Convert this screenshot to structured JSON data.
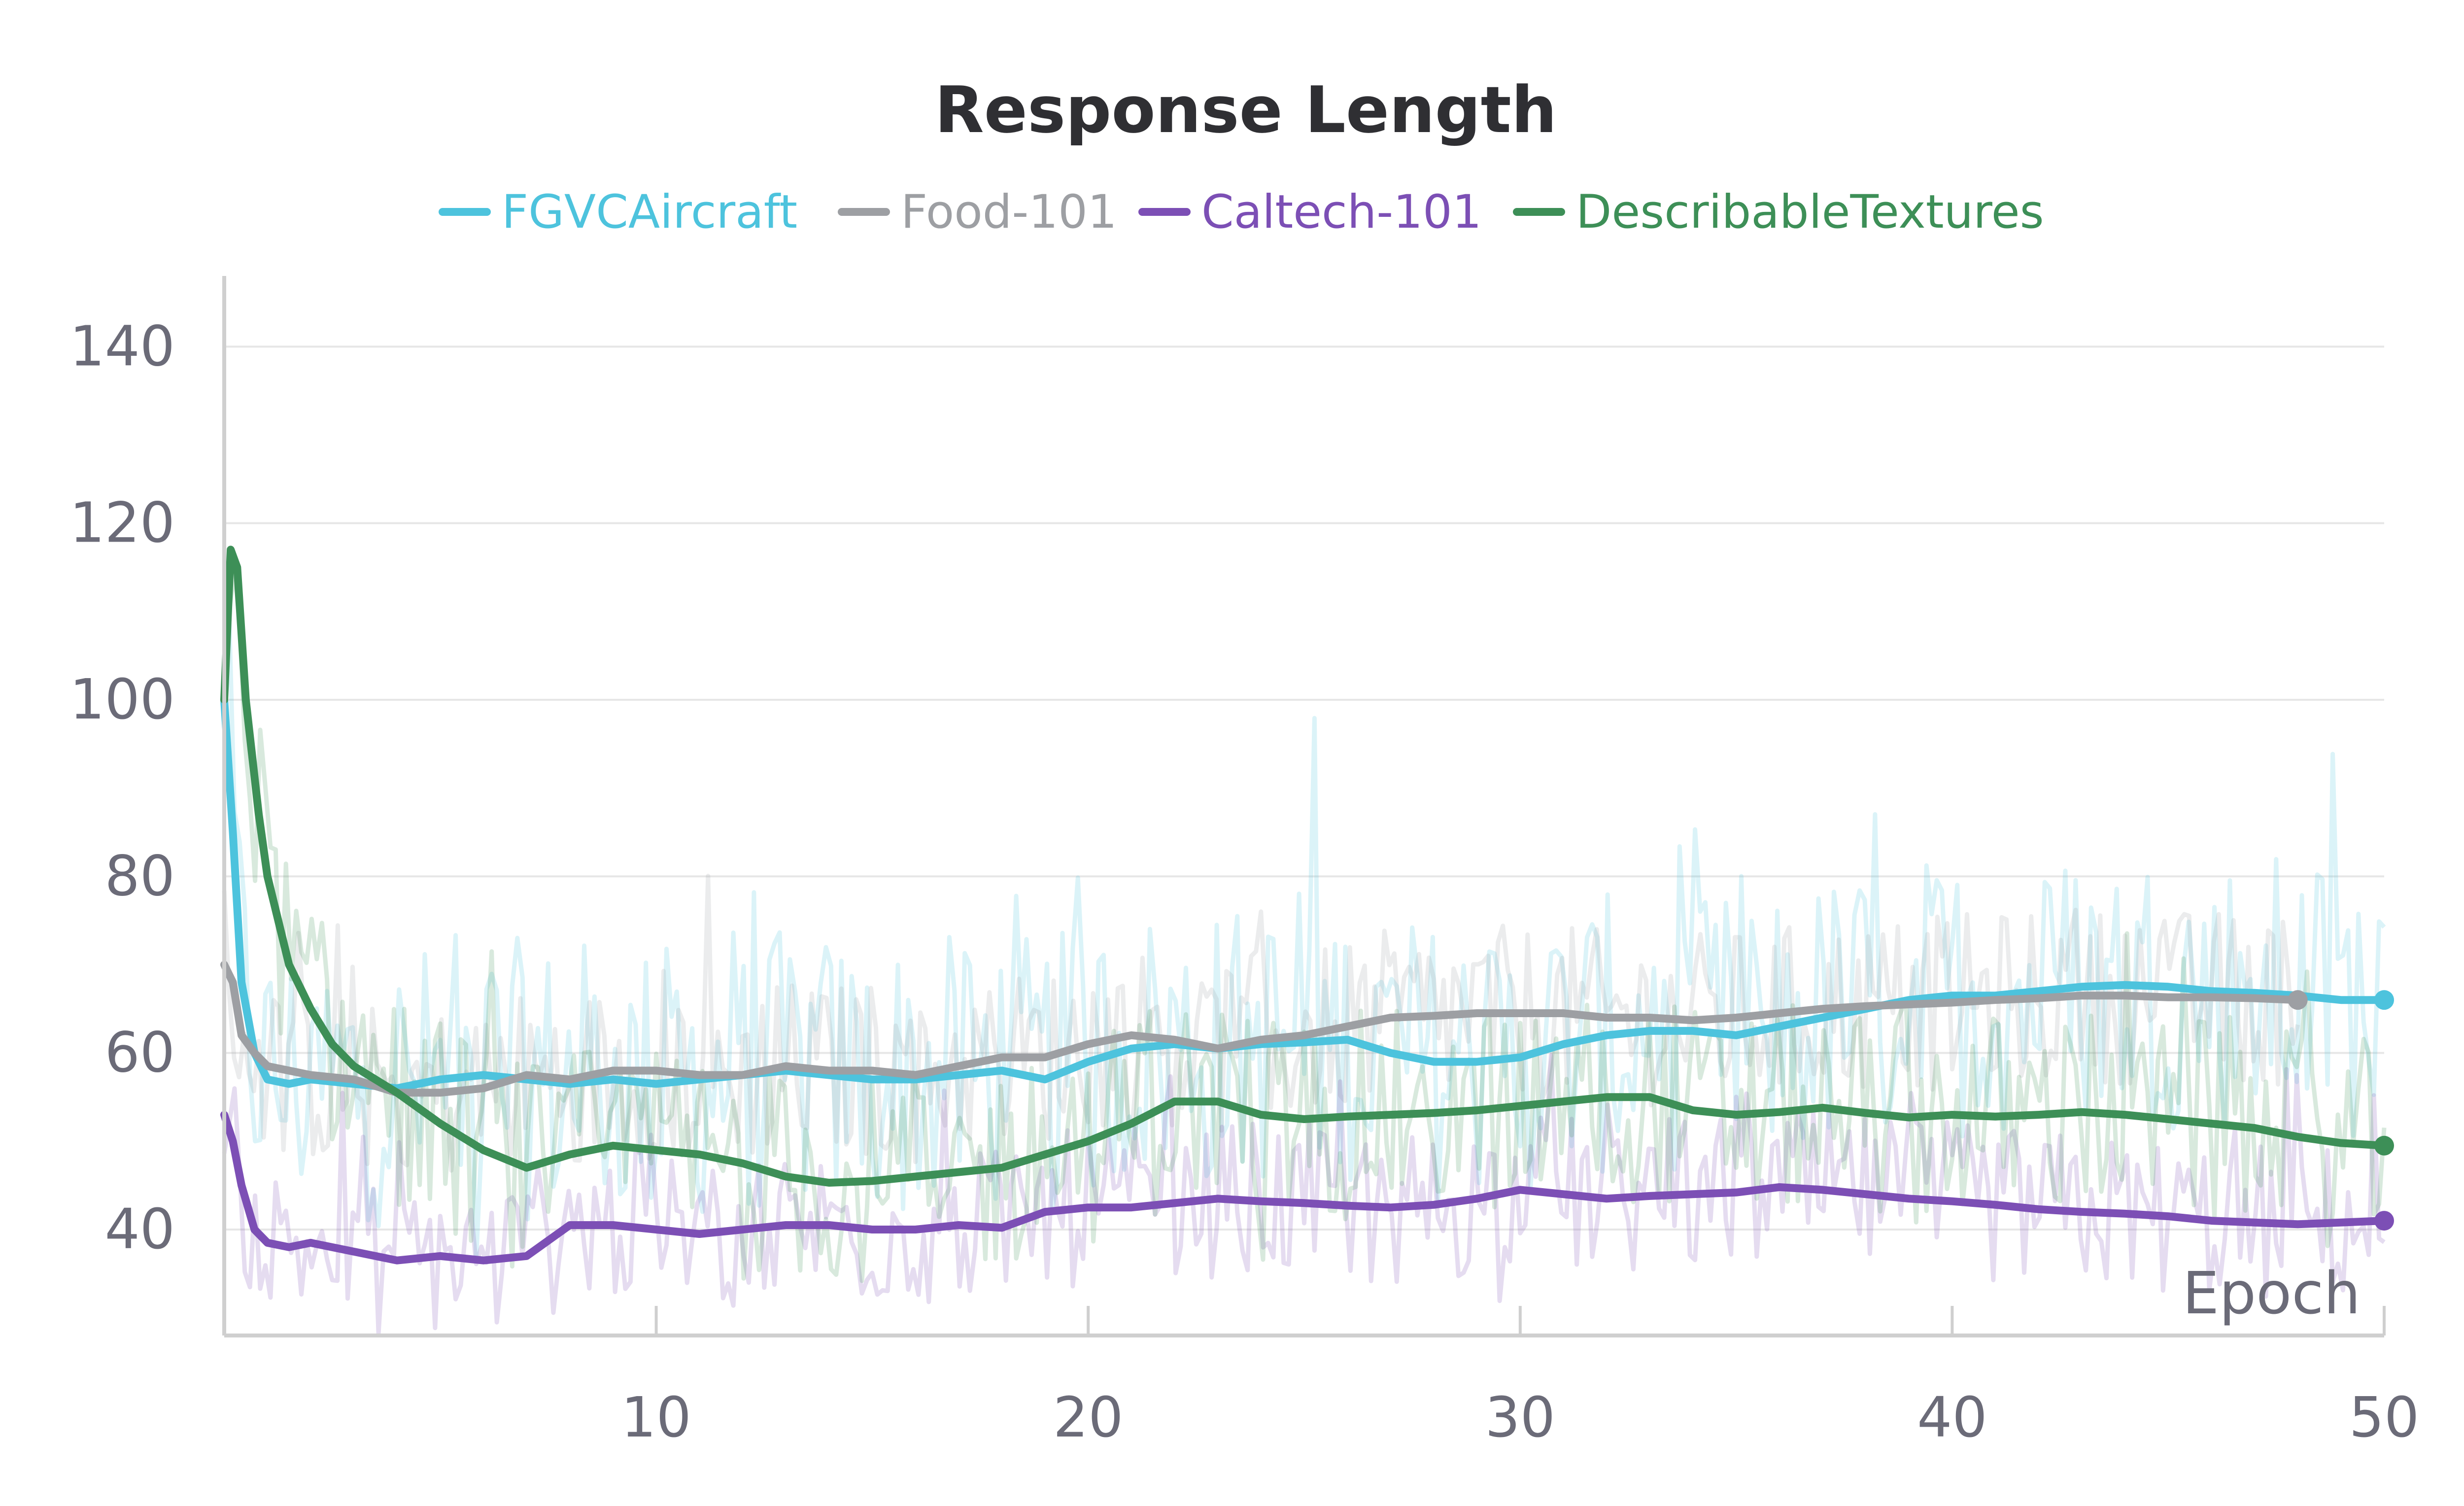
{
  "chart_data": {
    "type": "line",
    "title": "Response Length",
    "xlabel": "Epoch",
    "ylabel": "",
    "xlim": [
      0,
      50
    ],
    "ylim": [
      28,
      148
    ],
    "xticks": [
      10,
      20,
      30,
      40,
      50
    ],
    "yticks": [
      40,
      60,
      80,
      100,
      120,
      140
    ],
    "grid": true,
    "legend_position": "top-center",
    "series": [
      {
        "name": "FGVCAircraft",
        "color": "#4dc3dd",
        "x": [
          0,
          0.2,
          0.4,
          0.7,
          1,
          1.5,
          2,
          3,
          4,
          5,
          6,
          7,
          8,
          9,
          10,
          11,
          12,
          13,
          14,
          15,
          16,
          17,
          18,
          19,
          20,
          21,
          22,
          23,
          24,
          25,
          26,
          27,
          28,
          29,
          30,
          31,
          32,
          33,
          34,
          35,
          36,
          37,
          38,
          39,
          40,
          41,
          42,
          43,
          44,
          45,
          46,
          47,
          48,
          49,
          50
        ],
        "values": [
          100,
          85,
          68,
          60,
          57,
          56.5,
          57,
          56.5,
          56,
          57,
          57.5,
          57,
          56.5,
          57,
          56.5,
          57,
          57.5,
          58,
          57.5,
          57,
          57,
          57.5,
          58,
          57,
          59,
          60.5,
          61,
          60.5,
          61,
          61.2,
          61.5,
          60,
          59,
          59,
          59.5,
          61,
          62,
          62.5,
          62.5,
          62,
          63,
          64,
          65,
          66,
          66.5,
          66.5,
          67,
          67.5,
          67.7,
          67.5,
          67,
          66.8,
          66.5,
          66,
          66
        ]
      },
      {
        "name": "Food-101",
        "color": "#9d9fa3",
        "x": [
          0,
          0.2,
          0.4,
          0.7,
          1,
          1.5,
          2,
          3,
          4,
          5,
          6,
          7,
          8,
          9,
          10,
          11,
          12,
          13,
          14,
          15,
          16,
          17,
          18,
          19,
          20,
          21,
          22,
          23,
          24,
          25,
          26,
          27,
          28,
          29,
          30,
          31,
          32,
          33,
          34,
          35,
          36,
          37,
          38,
          39,
          40,
          41,
          42,
          43,
          44,
          45,
          46,
          47,
          48
        ],
        "values": [
          70,
          68,
          62,
          60,
          58.5,
          58,
          57.5,
          57,
          55.5,
          55.5,
          56,
          57.5,
          57,
          58,
          58,
          57.5,
          57.5,
          58.5,
          58,
          58,
          57.5,
          58.5,
          59.5,
          59.5,
          61,
          62,
          61.5,
          60.5,
          61.5,
          62,
          63,
          64,
          64.2,
          64.5,
          64.5,
          64.5,
          64,
          64,
          63.7,
          64,
          64.5,
          65,
          65.3,
          65.5,
          65.7,
          66,
          66.2,
          66.5,
          66.5,
          66.3,
          66.3,
          66.2,
          66
        ]
      },
      {
        "name": "Caltech-101",
        "color": "#7c4fb5",
        "x": [
          0,
          0.2,
          0.4,
          0.7,
          1,
          1.5,
          2,
          3,
          4,
          5,
          6,
          7,
          8,
          9,
          10,
          11,
          12,
          13,
          14,
          15,
          16,
          17,
          18,
          19,
          20,
          21,
          22,
          23,
          24,
          25,
          26,
          27,
          28,
          29,
          30,
          31,
          32,
          33,
          34,
          35,
          36,
          37,
          38,
          39,
          40,
          41,
          42,
          43,
          44,
          45,
          46,
          47,
          48,
          49,
          50
        ],
        "values": [
          53,
          50,
          45,
          40,
          38.5,
          38,
          38.5,
          37.5,
          36.5,
          37,
          36.5,
          37,
          40.5,
          40.5,
          40,
          39.5,
          40,
          40.5,
          40.5,
          40,
          40,
          40.5,
          40.2,
          42,
          42.5,
          42.5,
          43,
          43.5,
          43.2,
          43,
          42.7,
          42.5,
          42.8,
          43.5,
          44.5,
          44,
          43.5,
          43.8,
          44,
          44.2,
          44.8,
          44.5,
          44,
          43.5,
          43.2,
          42.8,
          42.3,
          42,
          41.8,
          41.5,
          41,
          40.8,
          40.6,
          40.8,
          41
        ]
      },
      {
        "name": "DescribableTextures",
        "color": "#3d8f57",
        "x": [
          0,
          0.15,
          0.3,
          0.5,
          0.8,
          1,
          1.5,
          2,
          2.5,
          3,
          3.5,
          4,
          5,
          6,
          7,
          8,
          9,
          10,
          11,
          12,
          13,
          14,
          15,
          16,
          17,
          18,
          19,
          20,
          21,
          22,
          23,
          24,
          25,
          26,
          27,
          28,
          29,
          30,
          31,
          32,
          33,
          34,
          35,
          36,
          37,
          38,
          39,
          40,
          41,
          42,
          43,
          44,
          45,
          46,
          47,
          48,
          49,
          50
        ],
        "values": [
          100,
          117,
          115,
          100,
          87,
          80,
          70,
          65,
          61,
          58.5,
          57,
          55.5,
          52,
          49,
          47,
          48.5,
          49.5,
          49,
          48.5,
          47.5,
          46,
          45.3,
          45.5,
          46,
          46.5,
          47,
          48.5,
          50,
          52,
          54.5,
          54.5,
          53,
          52.5,
          52.8,
          53,
          53.2,
          53.5,
          54,
          54.5,
          55,
          55,
          53.5,
          53,
          53.3,
          53.8,
          53.2,
          52.7,
          53,
          52.8,
          53,
          53.3,
          53,
          52.5,
          52,
          51.5,
          50.5,
          49.8,
          49.5
        ]
      }
    ]
  }
}
